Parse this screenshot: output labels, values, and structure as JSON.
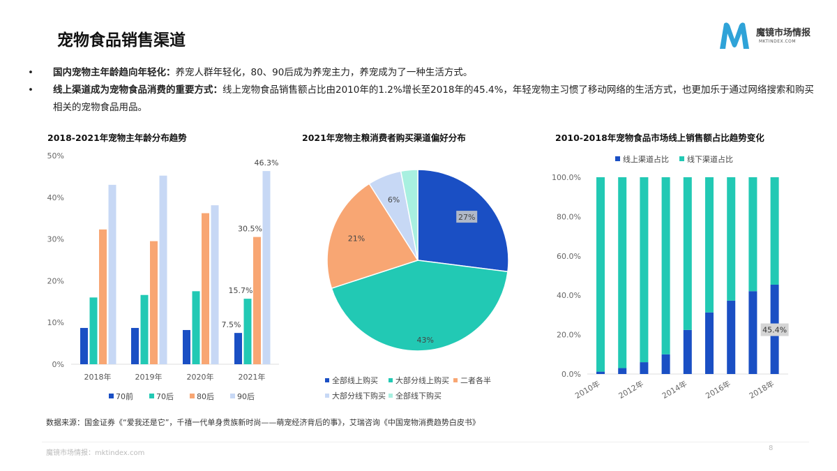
{
  "header": {
    "title": "宠物食品销售渠道",
    "logo_name": "魔镜市场情报",
    "logo_sub": "MKTINDEX.COM"
  },
  "bullets": [
    {
      "bold": "国内宠物主年龄趋向年轻化：",
      "text": "养宠人群年轻化，80、90后成为养宠主力，养宠成为了一种生活方式。"
    },
    {
      "bold": "线上渠道成为宠物食品消费的重要方式：",
      "text": "线上宠物食品销售额占比由2010年的1.2%增长至2018年的45.4%，年轻宠物主习惯了移动网络的生活方式，也更加乐于通过网络搜索和购买相关的宠物食品用品。"
    }
  ],
  "chart_data": [
    {
      "type": "bar",
      "title": "2018-2021年宠物主年龄分布趋势",
      "categories": [
        "2018年",
        "2019年",
        "2020年",
        "2021年"
      ],
      "ylim": [
        0,
        50
      ],
      "yticks": [
        "0%",
        "10%",
        "20%",
        "30%",
        "40%",
        "50%"
      ],
      "legend_position": "bottom",
      "series": [
        {
          "name": "70前",
          "color": "#1a4fc4",
          "values": [
            8.7,
            8.7,
            8.2,
            7.5
          ]
        },
        {
          "name": "70后",
          "color": "#22c9b4",
          "values": [
            16.0,
            16.6,
            17.5,
            15.7
          ]
        },
        {
          "name": "80后",
          "color": "#f8a673",
          "values": [
            32.3,
            29.5,
            36.2,
            30.5
          ]
        },
        {
          "name": "90后",
          "color": "#c7d8f5",
          "values": [
            43.0,
            45.2,
            38.1,
            46.3
          ]
        }
      ],
      "data_labels": [
        {
          "series": 0,
          "index": 3,
          "text": "7.5%"
        },
        {
          "series": 1,
          "index": 3,
          "text": "15.7%"
        },
        {
          "series": 2,
          "index": 3,
          "text": "30.5%"
        },
        {
          "series": 3,
          "index": 3,
          "text": "46.3%"
        }
      ]
    },
    {
      "type": "pie",
      "title": "2021年宠物主粮消费者购买渠道偏好分布",
      "legend_position": "bottom",
      "slices": [
        {
          "name": "全部线上购买",
          "value": 27,
          "label": "27%",
          "color": "#1a4fc4"
        },
        {
          "name": "大部分线上购买",
          "value": 43,
          "label": "43%",
          "color": "#22c9b4"
        },
        {
          "name": "二者各半",
          "value": 21,
          "label": "21%",
          "color": "#f8a673"
        },
        {
          "name": "大部分线下购买",
          "value": 6,
          "label": "6%",
          "color": "#c7d8f5"
        },
        {
          "name": "全部线下购买",
          "value": 3,
          "label": "",
          "color": "#a8f0e0"
        }
      ]
    },
    {
      "type": "bar",
      "stacked": true,
      "title": "2010-2018年宠物食品市场线上销售额占比趋势变化",
      "ylim": [
        0,
        100
      ],
      "yticks": [
        "0.0%",
        "20.0%",
        "40.0%",
        "60.0%",
        "80.0%",
        "100.0%"
      ],
      "legend_position": "top",
      "x": [
        "2010年",
        "2011年",
        "2012年",
        "2013年",
        "2014年",
        "2015年",
        "2016年",
        "2017年",
        "2018年"
      ],
      "xtick_labels": [
        "2010年",
        "2012年",
        "2014年",
        "2016年",
        "2018年"
      ],
      "series": [
        {
          "name": "线上渠道占比",
          "color": "#1a4fc4",
          "values": [
            1.2,
            3.0,
            6.0,
            10.0,
            22.4,
            31.3,
            37.3,
            42.1,
            45.4
          ]
        },
        {
          "name": "线下渠道占比",
          "color": "#22c9b4",
          "values": [
            98.8,
            97.0,
            94.0,
            90.0,
            77.6,
            68.7,
            62.7,
            57.9,
            54.6
          ]
        }
      ],
      "data_labels": [
        {
          "series": 0,
          "index": 8,
          "text": "45.4%"
        }
      ]
    }
  ],
  "source": "数据来源：国金证券《“爱我还是它”，千禧一代单身贵族新时尚——萌宠经济背后的事》，艾瑞咨询《中国宠物消费趋势白皮书》",
  "footer": {
    "text": "魔镜市场情报：mktindex.com",
    "page": "8"
  }
}
